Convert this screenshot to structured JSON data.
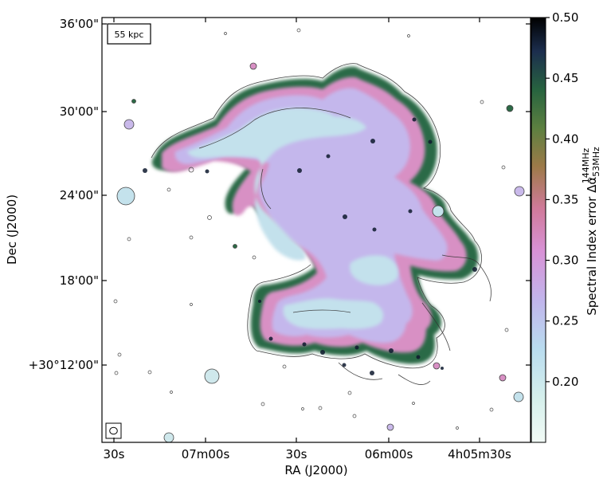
{
  "chart_data": {
    "type": "heatmap",
    "title": "",
    "xlabel": "RA (J2000)",
    "ylabel": "Dec (J2000)",
    "x_ticks": [
      "30s",
      "07m00s",
      "30s",
      "06m00s",
      "4h05m30s"
    ],
    "y_ticks": [
      "36'00\"",
      "30'00\"",
      "24'00\"",
      "18'00\"",
      "+30°12'00\""
    ],
    "scale_bar_label": "55 kpc",
    "colorbar": {
      "label_prefix": "Spectral Index error Δα",
      "label_sup": "144MHz",
      "label_sub": "53MHz",
      "ticks": [
        "0.50",
        "0.45",
        "0.40",
        "0.35",
        "0.30",
        "0.25",
        "0.20"
      ],
      "tick_values": [
        0.5,
        0.45,
        0.4,
        0.35,
        0.3,
        0.25,
        0.2
      ],
      "range": [
        0.15,
        0.5
      ],
      "colormap": "cubehelix-like (white → light blue → lavender → pink → olive/green → dark blue → black)"
    },
    "contours": true,
    "beam_marker": true
  }
}
